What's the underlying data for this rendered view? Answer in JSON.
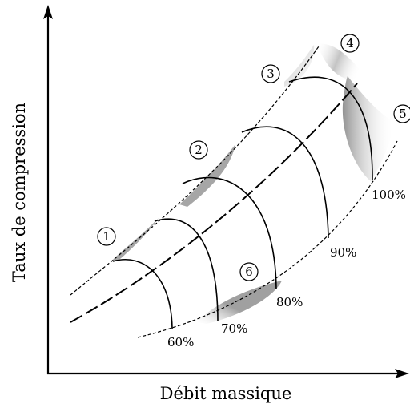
{
  "diagram": {
    "x_axis_label": "Débit massique",
    "y_axis_label": "Taux de compression",
    "speed_lines": [
      {
        "label": "60%"
      },
      {
        "label": "70%"
      },
      {
        "label": "80%"
      },
      {
        "label": "90%"
      },
      {
        "label": "100%"
      }
    ],
    "zones": [
      {
        "label": "1"
      },
      {
        "label": "2"
      },
      {
        "label": "3"
      },
      {
        "label": "4"
      },
      {
        "label": "5"
      },
      {
        "label": "6"
      }
    ],
    "colors": {
      "line": "#000000",
      "shade": "#a6a6a6",
      "background": "#ffffff"
    }
  }
}
